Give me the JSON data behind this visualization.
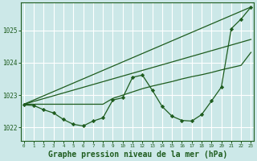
{
  "background_color": "#cce8e8",
  "grid_color": "#ffffff",
  "line_color": "#1e5c1e",
  "xlabel": "Graphe pression niveau de la mer (hPa)",
  "xlabel_fontsize": 7,
  "xticks": [
    0,
    1,
    2,
    3,
    4,
    5,
    6,
    7,
    8,
    9,
    10,
    11,
    12,
    13,
    14,
    15,
    16,
    17,
    18,
    19,
    20,
    21,
    22,
    23
  ],
  "yticks": [
    1022,
    1023,
    1024,
    1025
  ],
  "ylim": [
    1021.6,
    1025.85
  ],
  "xlim": [
    -0.3,
    23.3
  ],
  "series1_x": [
    0,
    1,
    2,
    3,
    4,
    5,
    6,
    7,
    8,
    9,
    10,
    11,
    12,
    13,
    14,
    15,
    16,
    17,
    18,
    19,
    20,
    21,
    22,
    23
  ],
  "series1_y": [
    1022.7,
    1022.68,
    1022.55,
    1022.45,
    1022.25,
    1022.1,
    1022.05,
    1022.2,
    1022.3,
    1022.85,
    1022.92,
    1023.55,
    1023.62,
    1023.15,
    1022.65,
    1022.35,
    1022.22,
    1022.2,
    1022.4,
    1022.82,
    1023.25,
    1025.05,
    1025.35,
    1025.72
  ],
  "series2_x": [
    0,
    1,
    2,
    3,
    4,
    5,
    6,
    7,
    8,
    9,
    10,
    11,
    12,
    13,
    14,
    15,
    16,
    17,
    18,
    19,
    20,
    21,
    22,
    23
  ],
  "series2_y": [
    1022.72,
    1022.72,
    1022.72,
    1022.72,
    1022.72,
    1022.72,
    1022.72,
    1022.72,
    1022.72,
    1022.9,
    1023.0,
    1023.1,
    1023.2,
    1023.28,
    1023.35,
    1023.42,
    1023.5,
    1023.57,
    1023.63,
    1023.7,
    1023.78,
    1023.85,
    1023.92,
    1024.32
  ],
  "series3_x": [
    0,
    23
  ],
  "series3_y": [
    1022.72,
    1025.72
  ],
  "series4_x": [
    0,
    23
  ],
  "series4_y": [
    1022.72,
    1024.72
  ]
}
